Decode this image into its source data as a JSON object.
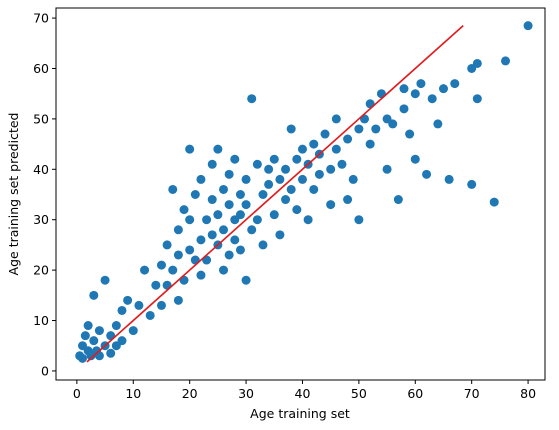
{
  "chart_data": {
    "type": "scatter",
    "xlabel": "Age training set",
    "ylabel": "Age training set predicted",
    "color": "#1f77b4",
    "x": [
      0.5,
      1,
      1,
      1.5,
      2,
      2,
      2.5,
      3,
      3,
      3.5,
      4,
      4,
      5,
      5,
      6,
      6,
      7,
      7,
      8,
      8,
      9,
      10,
      11,
      12,
      13,
      14,
      15,
      15,
      16,
      16,
      17,
      17,
      18,
      18,
      18,
      19,
      19,
      20,
      20,
      20,
      21,
      21,
      22,
      22,
      22,
      23,
      23,
      24,
      24,
      24,
      25,
      25,
      25,
      26,
      26,
      26,
      27,
      27,
      27,
      28,
      28,
      28,
      29,
      29,
      29,
      30,
      30,
      30,
      31,
      31,
      32,
      32,
      33,
      33,
      34,
      34,
      35,
      35,
      36,
      36,
      37,
      37,
      38,
      38,
      39,
      39,
      40,
      40,
      41,
      41,
      42,
      42,
      43,
      43,
      44,
      45,
      45,
      46,
      46,
      47,
      48,
      48,
      49,
      50,
      50,
      51,
      52,
      52,
      53,
      54,
      55,
      55,
      56,
      57,
      58,
      58,
      59,
      60,
      60,
      61,
      62,
      63,
      64,
      65,
      66,
      67,
      70,
      70,
      71,
      71,
      74,
      76,
      80
    ],
    "values": [
      3,
      5,
      2.5,
      7,
      4,
      9,
      3,
      6,
      15,
      4,
      8,
      3,
      18,
      5,
      7,
      3.5,
      9,
      5,
      12,
      6,
      14,
      8,
      13,
      20,
      11,
      17,
      13,
      21,
      25,
      17,
      36,
      20,
      28,
      14,
      23,
      32,
      18,
      44,
      24,
      30,
      22,
      35,
      26,
      19,
      38,
      30,
      22,
      27,
      34,
      41,
      44,
      25,
      31,
      20,
      36,
      28,
      33,
      23,
      39,
      30,
      26,
      42,
      35,
      24,
      31,
      18,
      33,
      38,
      54,
      28,
      41,
      30,
      35,
      25,
      37,
      40,
      31,
      42,
      38,
      27,
      40,
      34,
      48,
      36,
      42,
      32,
      44,
      38,
      41,
      30,
      45,
      36,
      43,
      39,
      47,
      40,
      33,
      44,
      50,
      41,
      46,
      34,
      38,
      48,
      30,
      50,
      45,
      53,
      48,
      55,
      50,
      40,
      49,
      34,
      52,
      56,
      47,
      55,
      42,
      57,
      39,
      54,
      49,
      56,
      38,
      57,
      37,
      60,
      61,
      54,
      33.5,
      61.5,
      68.5
    ],
    "fit_line": {
      "x": [
        1.8,
        68.5
      ],
      "values": [
        1.8,
        68.5
      ],
      "color": "#e31a1c"
    },
    "xlim": [
      -3.7,
      83
    ],
    "ylim": [
      -1.8,
      72
    ],
    "xticks": [
      0,
      10,
      20,
      30,
      40,
      50,
      60,
      70,
      80
    ],
    "yticks": [
      0,
      10,
      20,
      30,
      40,
      50,
      60,
      70
    ]
  }
}
